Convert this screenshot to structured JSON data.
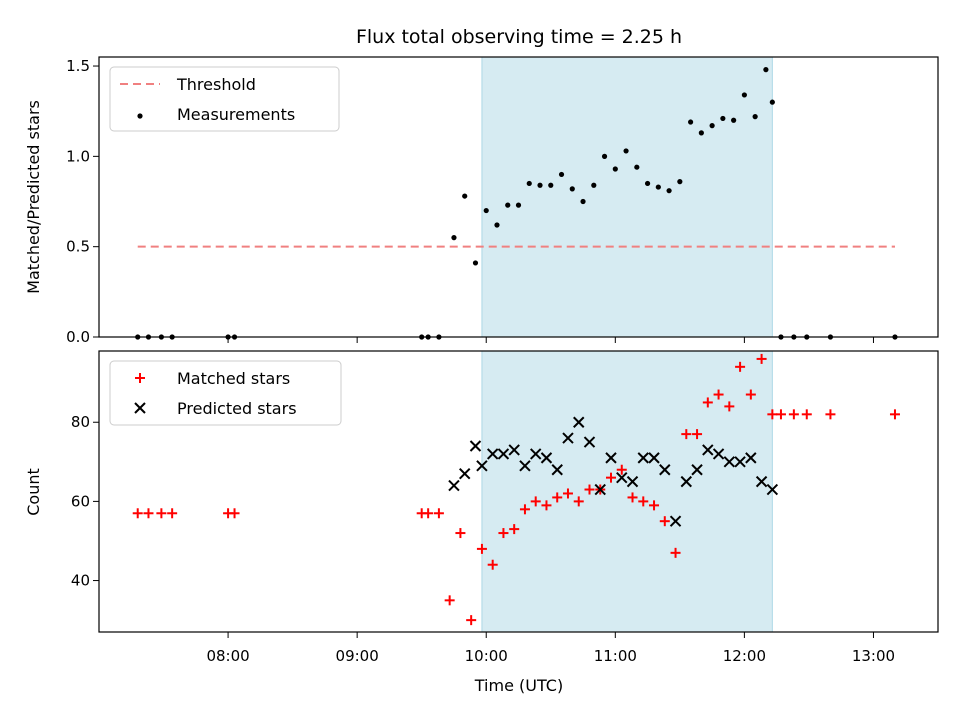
{
  "colors": {
    "band": "#add8e6",
    "threshold": "#f08080",
    "measurements": "#000000",
    "matched": "#ff0000",
    "predicted": "#000000"
  },
  "chart_data": [
    {
      "type": "scatter",
      "title": "Flux total observing time = 2.25 h",
      "xlabel": "",
      "ylabel": "Matched/Predicted stars",
      "xlim": [
        "07:00",
        "13:30"
      ],
      "ylim": [
        0,
        1.55
      ],
      "yticks": [
        "0.0",
        "0.5",
        "1.0",
        "1.5"
      ],
      "highlight_interval": {
        "start": "09:58",
        "end": "12:13"
      },
      "threshold": {
        "name": "Threshold",
        "y": 0.5,
        "x_start": "07:18",
        "x_end": "13:10"
      },
      "legend": [
        "Threshold",
        "Measurements"
      ],
      "legend_position": "upper left",
      "series": [
        {
          "name": "Measurements",
          "x": [
            "07:18",
            "07:23",
            "07:29",
            "07:34",
            "08:00",
            "08:03",
            "09:30",
            "09:33",
            "09:38",
            "09:45",
            "09:50",
            "09:55",
            "10:00",
            "10:05",
            "10:10",
            "10:15",
            "10:20",
            "10:25",
            "10:30",
            "10:35",
            "10:40",
            "10:45",
            "10:50",
            "10:55",
            "11:00",
            "11:05",
            "11:10",
            "11:15",
            "11:20",
            "11:25",
            "11:30",
            "11:35",
            "11:40",
            "11:45",
            "11:50",
            "11:55",
            "12:00",
            "12:05",
            "12:10",
            "12:13",
            "12:17",
            "12:23",
            "12:29",
            "12:40",
            "13:10"
          ],
          "y": [
            0,
            0,
            0,
            0,
            0,
            0,
            0,
            0,
            0,
            0.55,
            0.78,
            0.41,
            0.7,
            0.62,
            0.73,
            0.73,
            0.85,
            0.84,
            0.84,
            0.9,
            0.82,
            0.75,
            0.84,
            1.0,
            0.93,
            1.03,
            0.94,
            0.85,
            0.83,
            0.81,
            0.86,
            1.19,
            1.13,
            1.17,
            1.21,
            1.2,
            1.34,
            1.22,
            1.48,
            1.3,
            0,
            0,
            0,
            0,
            0
          ]
        }
      ]
    },
    {
      "type": "scatter",
      "title": "",
      "xlabel": "Time (UTC)",
      "ylabel": "Count",
      "xlim": [
        "07:00",
        "13:30"
      ],
      "ylim": [
        27,
        98
      ],
      "yticks": [
        "40",
        "60",
        "80"
      ],
      "xticks": [
        "08:00",
        "09:00",
        "10:00",
        "11:00",
        "12:00",
        "13:00"
      ],
      "highlight_interval": {
        "start": "09:58",
        "end": "12:13"
      },
      "legend": [
        "Matched stars",
        "Predicted stars"
      ],
      "legend_position": "upper left",
      "series": [
        {
          "name": "Matched stars",
          "marker": "+",
          "x": [
            "07:18",
            "07:23",
            "07:29",
            "07:34",
            "08:00",
            "08:03",
            "09:30",
            "09:33",
            "09:38",
            "09:43",
            "09:48",
            "09:53",
            "09:58",
            "10:03",
            "10:08",
            "10:13",
            "10:18",
            "10:23",
            "10:28",
            "10:33",
            "10:38",
            "10:43",
            "10:48",
            "10:53",
            "10:58",
            "11:03",
            "11:08",
            "11:13",
            "11:18",
            "11:23",
            "11:28",
            "11:33",
            "11:38",
            "11:43",
            "11:48",
            "11:53",
            "11:58",
            "12:03",
            "12:08",
            "12:13",
            "12:17",
            "12:23",
            "12:29",
            "12:40",
            "13:10"
          ],
          "y": [
            57,
            57,
            57,
            57,
            57,
            57,
            57,
            57,
            57,
            35,
            52,
            30,
            48,
            44,
            52,
            53,
            58,
            60,
            59,
            61,
            62,
            60,
            63,
            63,
            66,
            68,
            61,
            60,
            59,
            55,
            47,
            77,
            77,
            85,
            87,
            84,
            94,
            87,
            96,
            82,
            82,
            82,
            82,
            82,
            82
          ]
        },
        {
          "name": "Predicted stars",
          "marker": "x",
          "x": [
            "09:45",
            "09:50",
            "09:55",
            "09:58",
            "10:03",
            "10:08",
            "10:13",
            "10:18",
            "10:23",
            "10:28",
            "10:33",
            "10:38",
            "10:43",
            "10:48",
            "10:53",
            "10:58",
            "11:03",
            "11:08",
            "11:13",
            "11:18",
            "11:23",
            "11:28",
            "11:33",
            "11:38",
            "11:43",
            "11:48",
            "11:53",
            "11:58",
            "12:03",
            "12:08",
            "12:13"
          ],
          "y": [
            64,
            67,
            74,
            69,
            72,
            72,
            73,
            69,
            72,
            71,
            68,
            76,
            80,
            75,
            63,
            71,
            66,
            65,
            71,
            71,
            68,
            55,
            65,
            68,
            73,
            72,
            70,
            70,
            71,
            65,
            63
          ]
        }
      ]
    }
  ]
}
